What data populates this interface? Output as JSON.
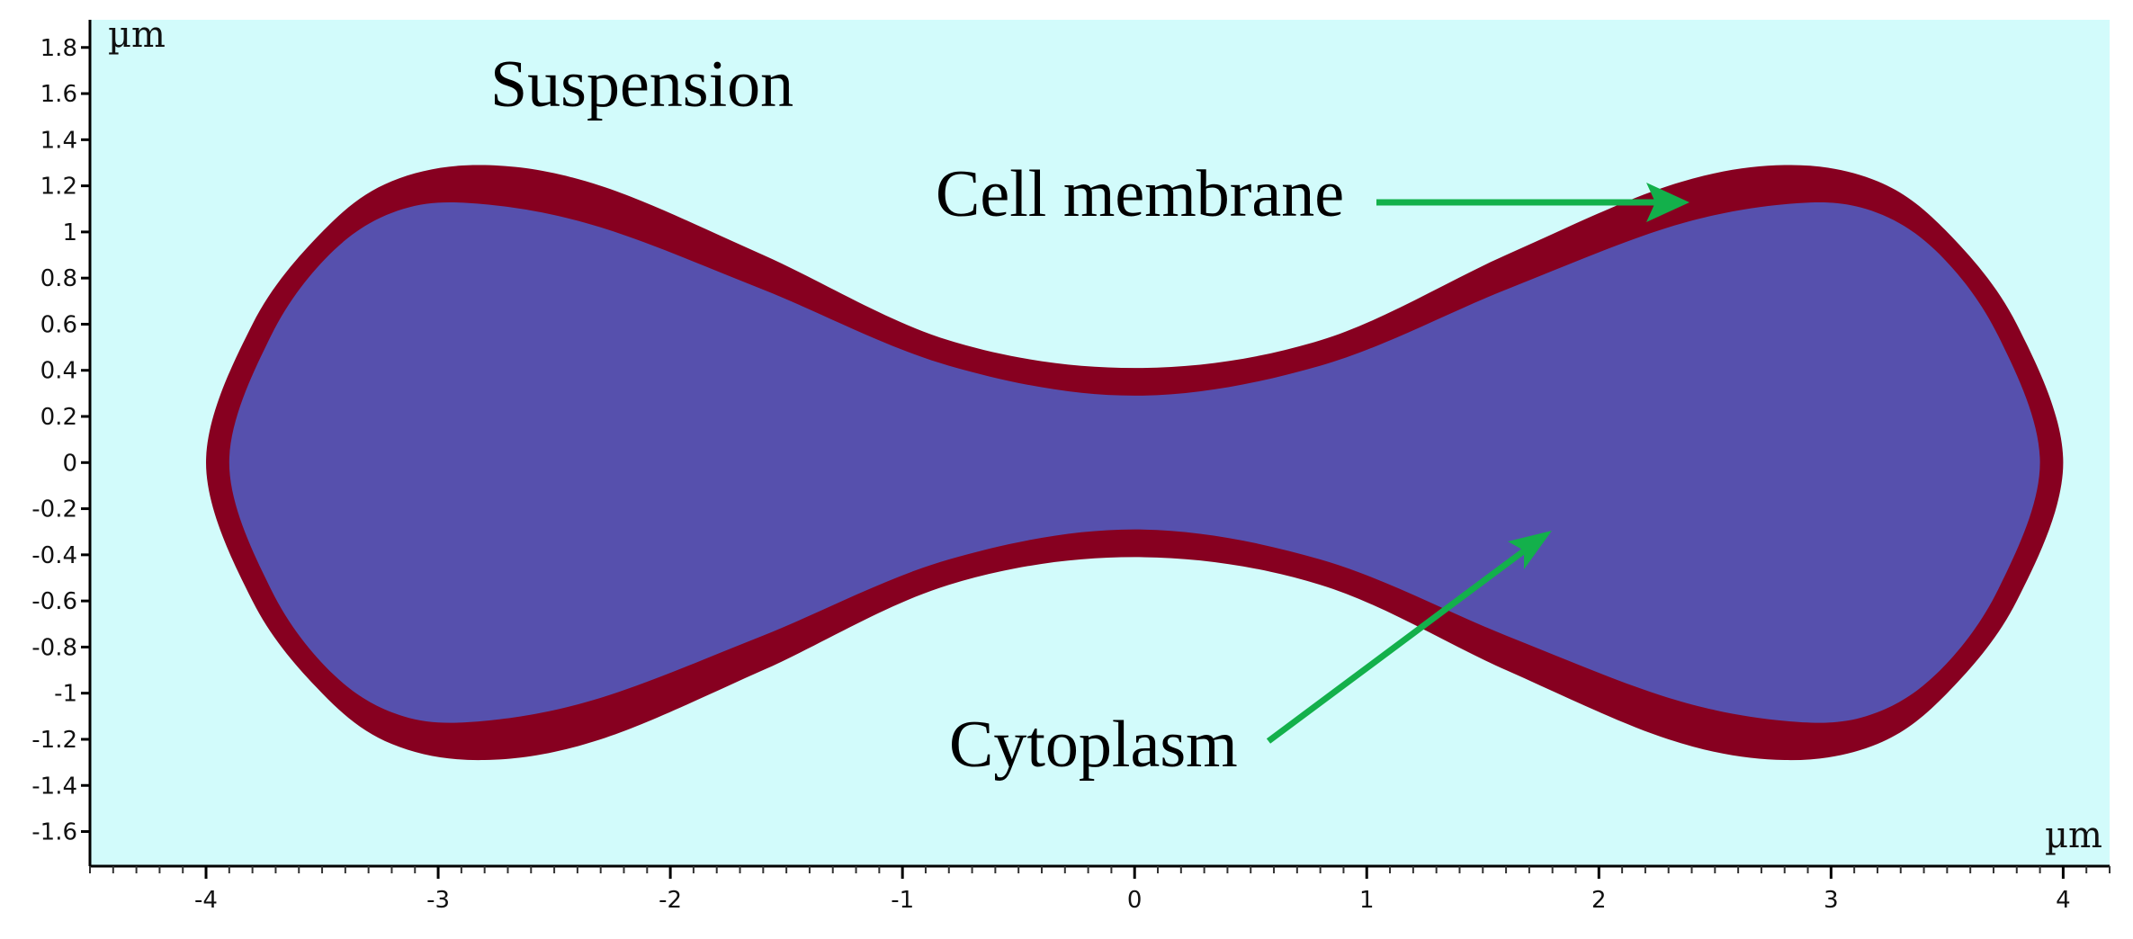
{
  "figure": {
    "units": {
      "x": "µm",
      "y": "µm"
    },
    "x_axis": {
      "range": [
        -4.5,
        4.2
      ],
      "major_ticks": [
        -4,
        -3,
        -2,
        -1,
        0,
        1,
        2,
        3,
        4
      ]
    },
    "y_axis": {
      "range": [
        -1.75,
        1.92
      ],
      "major_ticks": [
        -1.6,
        -1.4,
        -1.2,
        -1,
        -0.8,
        -0.6,
        -0.4,
        -0.2,
        0,
        0.2,
        0.4,
        0.6,
        0.8,
        1,
        1.2,
        1.4,
        1.6,
        1.8
      ]
    },
    "regions": {
      "suspension": {
        "label": "Suspension",
        "color": "#d2fbfb"
      },
      "membrane": {
        "label": "Cell membrane",
        "color": "#870020"
      },
      "cytoplasm": {
        "label": "Cytoplasm",
        "color": "#5650ad"
      }
    },
    "shape": {
      "description_points_outer": [
        [
          -4.0,
          0
        ],
        [
          -3.8,
          0.6
        ],
        [
          -3.5,
          1.0
        ],
        [
          -3.2,
          1.22
        ],
        [
          -2.8,
          1.29
        ],
        [
          -2.3,
          1.2
        ],
        [
          -1.6,
          0.9
        ],
        [
          -0.8,
          0.53
        ],
        [
          0,
          0.41
        ],
        [
          0.8,
          0.53
        ],
        [
          1.6,
          0.9
        ],
        [
          2.3,
          1.2
        ],
        [
          2.8,
          1.29
        ],
        [
          3.2,
          1.22
        ],
        [
          3.5,
          1.0
        ],
        [
          3.8,
          0.6
        ],
        [
          4.0,
          0
        ]
      ],
      "description_points_inner": [
        [
          -3.9,
          0
        ],
        [
          -3.72,
          0.55
        ],
        [
          -3.45,
          0.92
        ],
        [
          -3.15,
          1.1
        ],
        [
          -2.8,
          1.12
        ],
        [
          -2.3,
          1.02
        ],
        [
          -1.6,
          0.75
        ],
        [
          -0.8,
          0.42
        ],
        [
          0,
          0.29
        ],
        [
          0.8,
          0.42
        ],
        [
          1.6,
          0.75
        ],
        [
          2.3,
          1.02
        ],
        [
          2.8,
          1.12
        ],
        [
          3.15,
          1.1
        ],
        [
          3.45,
          0.92
        ],
        [
          3.72,
          0.55
        ],
        [
          3.9,
          0
        ]
      ]
    },
    "arrow_color": "#13b04b"
  }
}
